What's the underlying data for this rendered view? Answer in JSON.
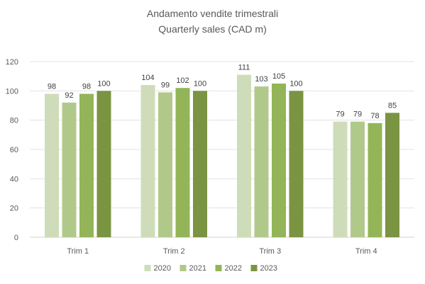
{
  "chart_data": {
    "type": "bar",
    "title": [
      "Andamento  vendite trimestrali",
      "Quarterly sales (CAD m)"
    ],
    "xlabel": "",
    "ylabel": "",
    "ylim": [
      0,
      120
    ],
    "yticks": [
      0,
      20,
      40,
      60,
      80,
      100,
      120
    ],
    "categories": [
      "Trim 1",
      "Trim 2",
      "Trim 3",
      "Trim 4"
    ],
    "series": [
      {
        "name": "2020",
        "color": "#cfdcb9",
        "values": [
          98,
          104,
          111,
          79
        ]
      },
      {
        "name": "2021",
        "color": "#b0c98a",
        "values": [
          92,
          99,
          103,
          79
        ]
      },
      {
        "name": "2022",
        "color": "#93b558",
        "values": [
          98,
          102,
          105,
          78
        ]
      },
      {
        "name": "2023",
        "color": "#7a9441",
        "values": [
          100,
          100,
          100,
          85
        ]
      }
    ],
    "gridlines": true,
    "legend_position": "bottom",
    "data_labels": true
  }
}
